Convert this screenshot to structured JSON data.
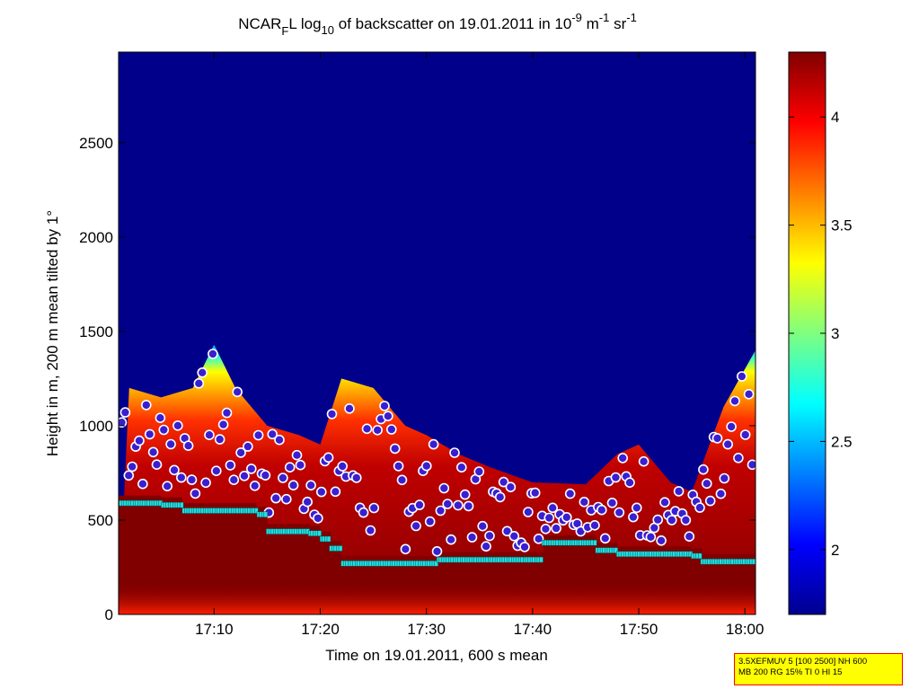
{
  "chart_data": {
    "type": "heatmap",
    "title_parts": {
      "prefix": "NCAR",
      "sub_f": "F",
      "after_f": "L log",
      "sub_10": "10",
      "after_10": " of backscatter on 19.01.2011 in 10",
      "sup_exp": "-9",
      "after_exp": " m",
      "sup_m": "-1",
      "after_m": " sr",
      "sup_sr": "-1"
    },
    "xlabel": "Time on 19.01.2011, 600 s mean",
    "ylabel": "Height in m, 200 m mean tilted by 1°",
    "x_ticks": [
      "17:10",
      "17:20",
      "17:30",
      "17:40",
      "17:50",
      "18:00"
    ],
    "y_ticks": [
      "0",
      "500",
      "1000",
      "1500",
      "2000",
      "2500"
    ],
    "xlim": [
      "17:01",
      "18:01"
    ],
    "ylim": [
      0,
      2980
    ],
    "colorbar": {
      "ticks": [
        "2",
        "2.5",
        "3",
        "3.5",
        "4"
      ],
      "range": [
        1.7,
        4.3
      ],
      "colormap": "jet"
    },
    "colors": {
      "background_low": "#00008b",
      "saturated": "#800000",
      "cloud_marker_fill": "#3a1fd0",
      "cloud_marker_edge": "#ffffff",
      "mixing_layer_marker": "#22e0e0"
    },
    "cloud_top_profile": [
      {
        "x": "17:02",
        "y": 1200
      },
      {
        "x": "17:05",
        "y": 1150
      },
      {
        "x": "17:08",
        "y": 1200
      },
      {
        "x": "17:10",
        "y": 1430
      },
      {
        "x": "17:12",
        "y": 1200
      },
      {
        "x": "17:15",
        "y": 1000
      },
      {
        "x": "17:18",
        "y": 950
      },
      {
        "x": "17:20",
        "y": 900
      },
      {
        "x": "17:22",
        "y": 1250
      },
      {
        "x": "17:25",
        "y": 1200
      },
      {
        "x": "17:28",
        "y": 1000
      },
      {
        "x": "17:30",
        "y": 950
      },
      {
        "x": "17:33",
        "y": 850
      },
      {
        "x": "17:36",
        "y": 780
      },
      {
        "x": "17:40",
        "y": 700
      },
      {
        "x": "17:45",
        "y": 690
      },
      {
        "x": "17:48",
        "y": 850
      },
      {
        "x": "17:50",
        "y": 900
      },
      {
        "x": "17:53",
        "y": 700
      },
      {
        "x": "17:55",
        "y": 650
      },
      {
        "x": "17:58",
        "y": 1100
      },
      {
        "x": "18:01",
        "y": 1400
      }
    ],
    "mixing_layer_height": [
      {
        "x": "17:01",
        "y": 590
      },
      {
        "x": "17:05",
        "y": 580
      },
      {
        "x": "17:07",
        "y": 550
      },
      {
        "x": "17:12",
        "y": 550
      },
      {
        "x": "17:14",
        "y": 530
      },
      {
        "x": "17:15",
        "y": 440
      },
      {
        "x": "17:19",
        "y": 430
      },
      {
        "x": "17:20",
        "y": 400
      },
      {
        "x": "17:21",
        "y": 350
      },
      {
        "x": "17:22",
        "y": 270
      },
      {
        "x": "17:30",
        "y": 270
      },
      {
        "x": "17:31",
        "y": 290
      },
      {
        "x": "17:40",
        "y": 290
      },
      {
        "x": "17:41",
        "y": 380
      },
      {
        "x": "17:45",
        "y": 380
      },
      {
        "x": "17:46",
        "y": 340
      },
      {
        "x": "17:48",
        "y": 320
      },
      {
        "x": "17:55",
        "y": 310
      },
      {
        "x": "17:56",
        "y": 280
      },
      {
        "x": "18:01",
        "y": 280
      }
    ]
  },
  "info_box": {
    "line1": "3.5XEFMUV 5 [100 2500] NH 600",
    "line2": "MB 200 RG 15% TI 0 HI 15"
  }
}
